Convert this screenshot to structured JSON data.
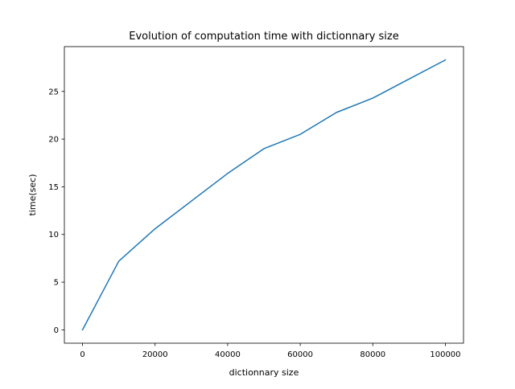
{
  "chart_data": {
    "type": "line",
    "title": "Evolution of computation time with dictionnary size",
    "xlabel": "dictionnary size",
    "ylabel": "time(sec)",
    "xlim": [
      -5000,
      105000
    ],
    "ylim": [
      -1.4,
      29.7
    ],
    "xticks": [
      0,
      20000,
      40000,
      60000,
      80000,
      100000
    ],
    "yticks": [
      0,
      5,
      10,
      15,
      20,
      25
    ],
    "grid": false,
    "series": [
      {
        "color": "#1f77b4",
        "x": [
          0,
          10000,
          20000,
          30000,
          40000,
          50000,
          60000,
          70000,
          80000,
          90000,
          100000
        ],
        "y": [
          0,
          7.2,
          10.6,
          13.5,
          16.4,
          19.0,
          20.5,
          22.8,
          24.3,
          26.3,
          28.3
        ]
      }
    ]
  }
}
